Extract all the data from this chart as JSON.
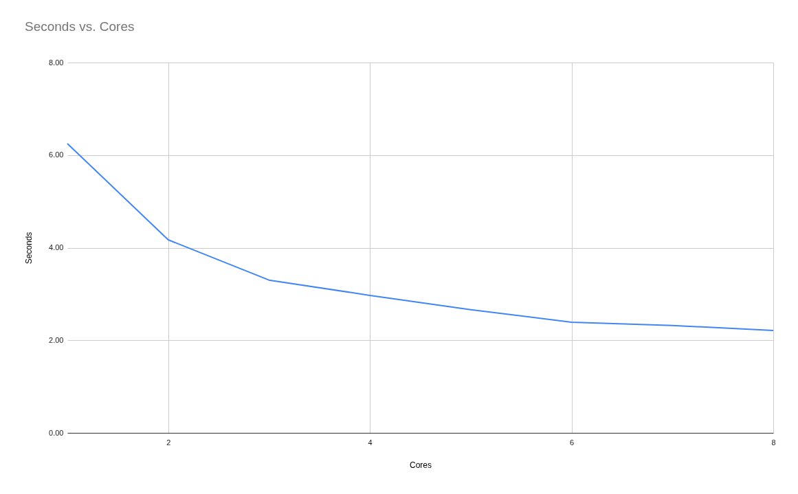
{
  "chart_data": {
    "type": "line",
    "title": "Seconds vs. Cores",
    "xlabel": "Cores",
    "ylabel": "Seconds",
    "x": [
      1,
      2,
      3,
      4,
      5,
      6,
      7,
      8
    ],
    "series": [
      {
        "color": "#4285f4",
        "values": [
          6.25,
          4.17,
          3.3,
          2.97,
          2.66,
          2.39,
          2.32,
          2.21
        ]
      }
    ],
    "xlim": [
      1,
      8
    ],
    "xticks": [
      2,
      4,
      6,
      8
    ],
    "ylim": [
      0,
      8
    ],
    "yticks": [
      {
        "value": 0,
        "label": "0.00"
      },
      {
        "value": 2,
        "label": "2.00"
      },
      {
        "value": 4,
        "label": "4.00"
      },
      {
        "value": 6,
        "label": "6.00"
      },
      {
        "value": 8,
        "label": "8.00"
      }
    ],
    "grid": true,
    "marker": "none",
    "line_style": "solid"
  }
}
